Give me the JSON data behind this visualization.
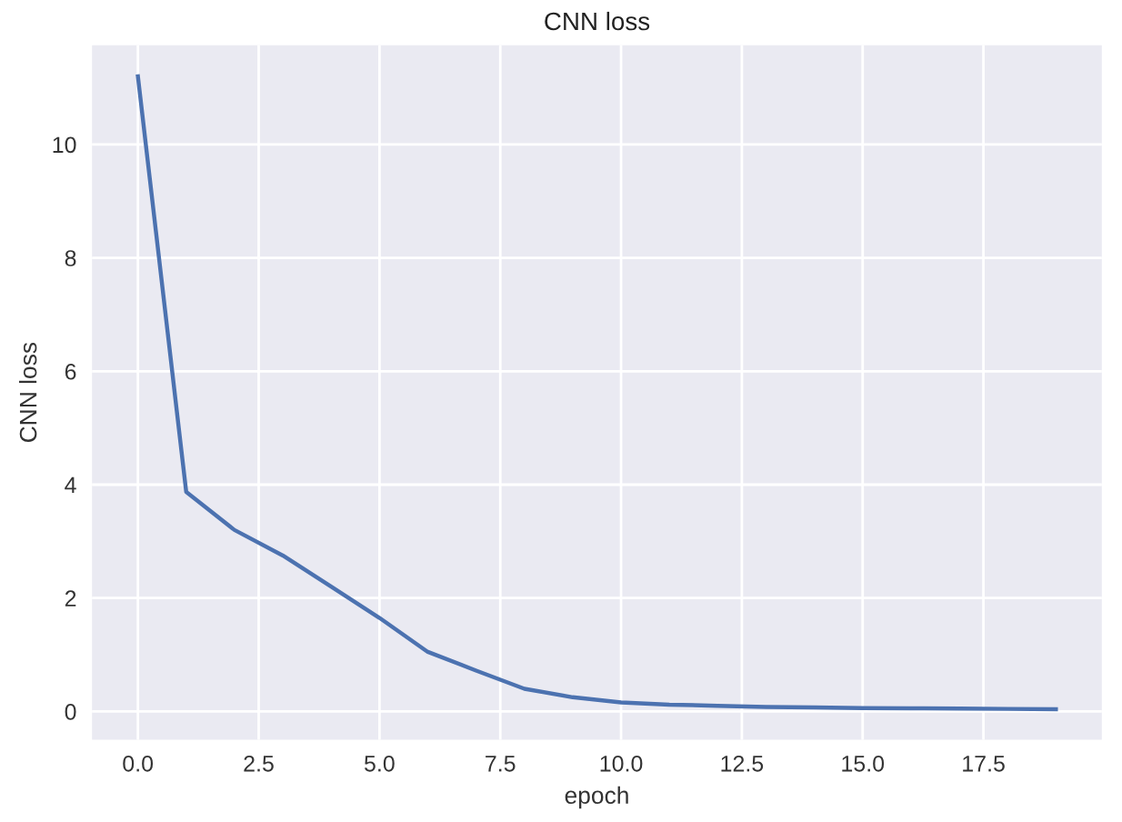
{
  "chart_data": {
    "type": "line",
    "title": "CNN loss",
    "xlabel": "epoch",
    "ylabel": "CNN loss",
    "x": [
      0,
      1,
      2,
      3,
      4,
      5,
      6,
      7,
      8,
      9,
      10,
      11,
      12,
      13,
      14,
      15,
      16,
      17,
      18,
      19
    ],
    "series": [
      {
        "color": "#4c72b0",
        "values": [
          11.2,
          3.87,
          3.2,
          2.75,
          2.2,
          1.65,
          1.05,
          0.72,
          0.4,
          0.25,
          0.16,
          0.12,
          0.1,
          0.08,
          0.07,
          0.06,
          0.055,
          0.05,
          0.045,
          0.04
        ]
      }
    ],
    "xlim": [
      -0.95,
      19.95
    ],
    "ylim": [
      -0.5,
      11.75
    ],
    "xticks": [
      {
        "value": 0,
        "label": "0.0"
      },
      {
        "value": 2.5,
        "label": "2.5"
      },
      {
        "value": 5,
        "label": "5.0"
      },
      {
        "value": 7.5,
        "label": "7.5"
      },
      {
        "value": 10,
        "label": "10.0"
      },
      {
        "value": 12.5,
        "label": "12.5"
      },
      {
        "value": 15,
        "label": "15.0"
      },
      {
        "value": 17.5,
        "label": "17.5"
      }
    ],
    "yticks": [
      0,
      2,
      4,
      6,
      8,
      10
    ],
    "grid": true,
    "marker": "none",
    "line_style": "solid"
  }
}
